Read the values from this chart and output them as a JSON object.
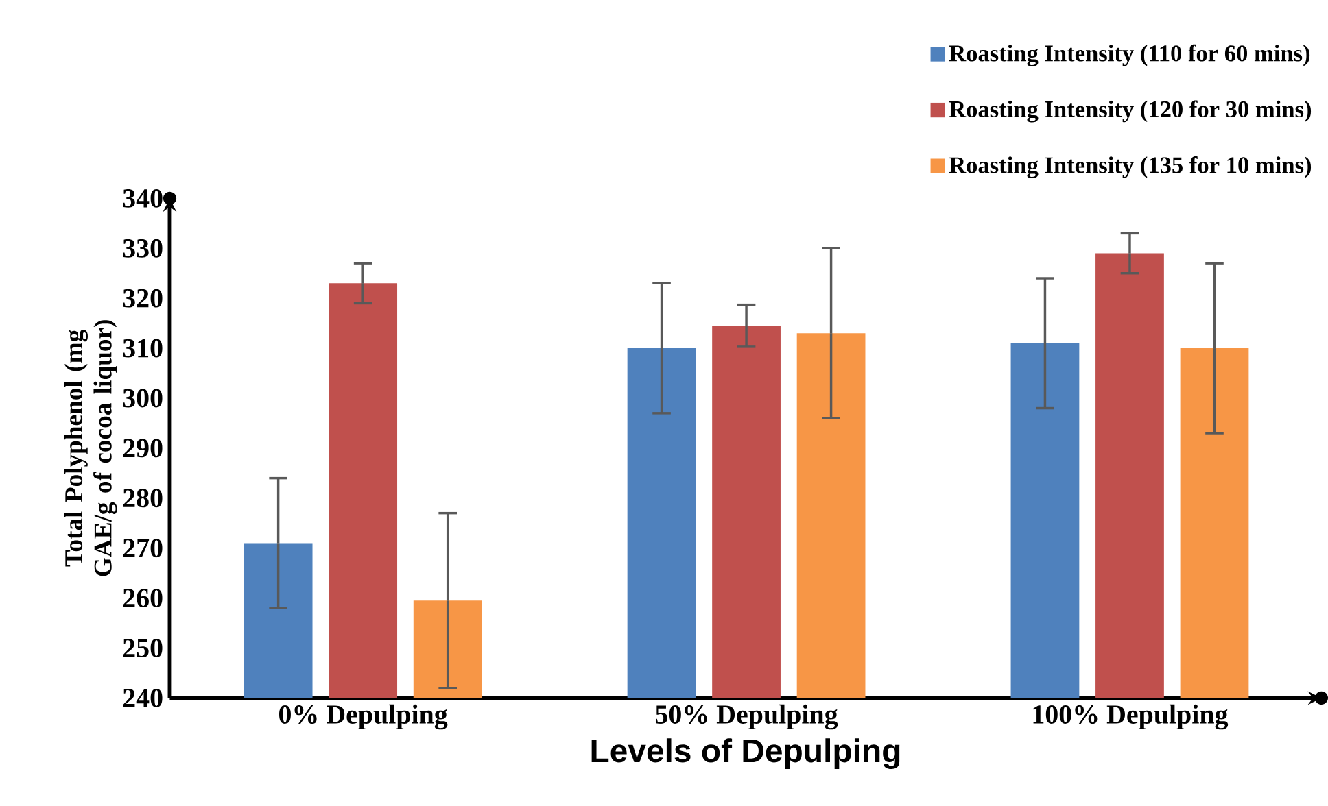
{
  "chart_data": {
    "type": "bar",
    "xlabel": "Levels of Depulping",
    "ylabel": "Total Polyphenol (mg GAE/g of cocoa liquor)",
    "categories": [
      "0% Depulping",
      "50% Depulping",
      "100% Depulping"
    ],
    "series": [
      {
        "name": "Roasting Intensity (110 for 60 mins)",
        "color": "#4f81bd",
        "values": [
          271,
          310,
          311
        ],
        "errors": [
          13,
          13,
          13
        ]
      },
      {
        "name": "Roasting Intensity (120 for 30 mins)",
        "color": "#c0504d",
        "values": [
          323,
          314.5,
          329
        ],
        "errors": [
          4,
          4.2,
          4
        ]
      },
      {
        "name": "Roasting Intensity (135 for 10 mins)",
        "color": "#f79646",
        "values": [
          259.5,
          313,
          310
        ],
        "errors": [
          17.5,
          17,
          17
        ]
      }
    ],
    "ylim": [
      240,
      340
    ],
    "yticks": [
      240,
      250,
      260,
      270,
      280,
      290,
      300,
      310,
      320,
      330,
      340
    ],
    "grid": false,
    "legend": "top right"
  }
}
